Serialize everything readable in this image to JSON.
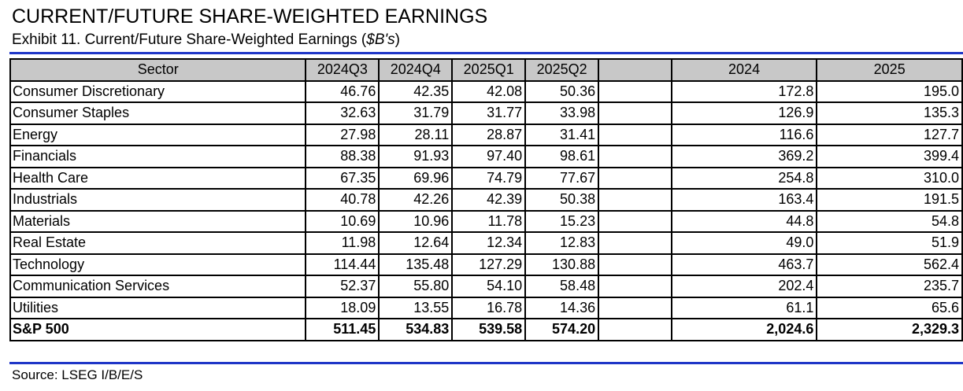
{
  "header": {
    "title": "CURRENT/FUTURE SHARE-WEIGHTED EARNINGS",
    "subtitle_text": "Exhibit 11. Current/Future Share-Weighted Earnings (",
    "subtitle_unit": "$B's",
    "subtitle_close": ")"
  },
  "table": {
    "columns": {
      "sector": "Sector",
      "q1": "2024Q3",
      "q2": "2024Q4",
      "q3": "2025Q1",
      "q4": "2025Q2",
      "blank": "",
      "y1": "2024",
      "y2": "2025"
    },
    "rows": [
      {
        "sector": "Consumer Discretionary",
        "q1": "46.76",
        "q2": "42.35",
        "q3": "42.08",
        "q4": "50.36",
        "y1": "172.8",
        "y2": "195.0"
      },
      {
        "sector": "Consumer Staples",
        "q1": "32.63",
        "q2": "31.79",
        "q3": "31.77",
        "q4": "33.98",
        "y1": "126.9",
        "y2": "135.3"
      },
      {
        "sector": "Energy",
        "q1": "27.98",
        "q2": "28.11",
        "q3": "28.87",
        "q4": "31.41",
        "y1": "116.6",
        "y2": "127.7"
      },
      {
        "sector": "Financials",
        "q1": "88.38",
        "q2": "91.93",
        "q3": "97.40",
        "q4": "98.61",
        "y1": "369.2",
        "y2": "399.4"
      },
      {
        "sector": "Health Care",
        "q1": "67.35",
        "q2": "69.96",
        "q3": "74.79",
        "q4": "77.67",
        "y1": "254.8",
        "y2": "310.0"
      },
      {
        "sector": "Industrials",
        "q1": "40.78",
        "q2": "42.26",
        "q3": "42.39",
        "q4": "50.38",
        "y1": "163.4",
        "y2": "191.5"
      },
      {
        "sector": "Materials",
        "q1": "10.69",
        "q2": "10.96",
        "q3": "11.78",
        "q4": "15.23",
        "y1": "44.8",
        "y2": "54.8"
      },
      {
        "sector": "Real Estate",
        "q1": "11.98",
        "q2": "12.64",
        "q3": "12.34",
        "q4": "12.83",
        "y1": "49.0",
        "y2": "51.9"
      },
      {
        "sector": "Technology",
        "q1": "114.44",
        "q2": "135.48",
        "q3": "127.29",
        "q4": "130.88",
        "y1": "463.7",
        "y2": "562.4"
      },
      {
        "sector": "Communication Services",
        "q1": "52.37",
        "q2": "55.80",
        "q3": "54.10",
        "q4": "58.48",
        "y1": "202.4",
        "y2": "235.7"
      },
      {
        "sector": "Utilities",
        "q1": "18.09",
        "q2": "13.55",
        "q3": "16.78",
        "q4": "14.36",
        "y1": "61.1",
        "y2": "65.6"
      }
    ],
    "total": {
      "sector": "S&P 500",
      "q1": "511.45",
      "q2": "534.83",
      "q3": "539.58",
      "q4": "574.20",
      "y1": "2,024.6",
      "y2": "2,329.3"
    }
  },
  "footer": {
    "source": "Source: LSEG I/B/E/S"
  },
  "colors": {
    "rule": "#1f36c7",
    "header_fill": "#c8c8c8"
  }
}
